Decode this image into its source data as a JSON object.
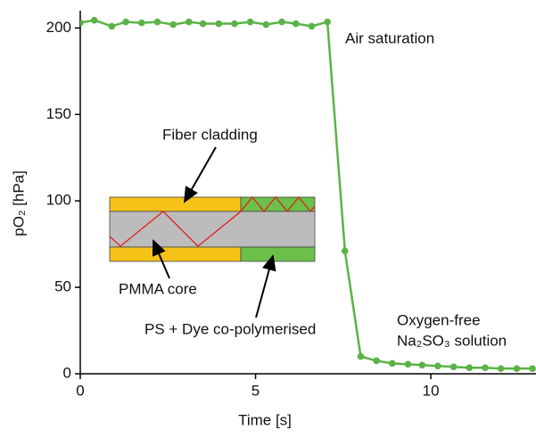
{
  "chart_data": {
    "type": "line",
    "x": [
      0,
      0.4,
      0.9,
      1.3,
      1.75,
      2.2,
      2.65,
      3.1,
      3.5,
      3.95,
      4.4,
      4.85,
      5.3,
      5.75,
      6.15,
      6.6,
      7.05,
      7.55,
      8.0,
      8.45,
      8.9,
      9.35,
      9.75,
      10.2,
      10.65,
      11.1,
      11.55,
      12.0,
      12.45,
      12.9
    ],
    "series": [
      {
        "color": "#5bb347",
        "values": [
          203,
          204.5,
          201,
          203.5,
          203,
          203.5,
          202,
          203.5,
          202.5,
          202.5,
          202.5,
          203.5,
          202,
          203.5,
          202.5,
          201,
          203.5,
          71,
          10,
          7.5,
          6,
          5.5,
          5,
          4.5,
          4,
          3.5,
          3.5,
          3,
          3,
          3
        ]
      }
    ],
    "x_label": "Time [s]",
    "y_label": "pO₂ [hPa]",
    "xlim": [
      0,
      13
    ],
    "ylim": [
      0,
      210
    ],
    "xticks": [
      0,
      5,
      10
    ],
    "yticks": [
      0,
      50,
      100,
      150,
      200
    ],
    "grid": false,
    "annotations": [
      "Air saturation",
      "Oxygen-free",
      "Na₂SO₃ solution"
    ],
    "inset_labels": [
      "Fiber cladding",
      "PMMA core",
      "PS + Dye co-polymerised"
    ]
  }
}
